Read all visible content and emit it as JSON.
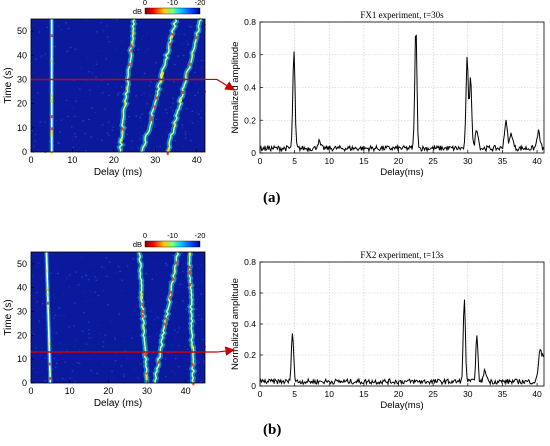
{
  "colors": {
    "line": "#000000",
    "arrow": "#cc0000",
    "heatmap_low": "#0b1a9c",
    "heatmap_high": "#ff0000"
  },
  "panels": [
    {
      "id": "a",
      "caption": "(a)",
      "colorbar": {
        "unit": "dB",
        "ticks": [
          "0",
          "-10",
          "-20"
        ]
      },
      "arrow_time_label": "t=30s"
    },
    {
      "id": "b",
      "caption": "(b)",
      "colorbar": {
        "unit": "dB",
        "ticks": [
          "0",
          "-10",
          "-20"
        ]
      },
      "arrow_time_label": "t=13s"
    }
  ],
  "chart_data": [
    {
      "type": "heatmap",
      "title": "",
      "xlabel": "Delay (ms)",
      "ylabel": "Time (s)",
      "xlim": [
        0,
        42
      ],
      "ylim": [
        0,
        55
      ],
      "xticks": [
        0,
        10,
        20,
        30,
        40
      ],
      "yticks": [
        0,
        10,
        20,
        30,
        40,
        50
      ],
      "colorbar_range_db": [
        0,
        -20
      ],
      "marker_time_s": 30,
      "tracks": [
        {
          "delay_ms_at_t0": 5,
          "delay_ms_at_t55": 5
        },
        {
          "delay_ms_at_t0": 21.5,
          "delay_ms_at_t55": 25
        },
        {
          "delay_ms_at_t0": 27,
          "delay_ms_at_t55": 35
        },
        {
          "delay_ms_at_t0": 33,
          "delay_ms_at_t55": 41
        }
      ]
    },
    {
      "type": "line",
      "title": "FX1 experiment,   t=30s",
      "xlabel": "Delay(ms)",
      "ylabel": "Normalized amplitude",
      "xlim": [
        0,
        41
      ],
      "ylim": [
        0,
        0.8
      ],
      "xticks": [
        0,
        5,
        10,
        15,
        20,
        25,
        30,
        35,
        40
      ],
      "yticks": [
        0,
        0.2,
        0.4,
        0.6,
        0.8
      ],
      "grid": true,
      "noise_floor": 0.03,
      "peaks": [
        {
          "x": 4.9,
          "y": 0.62
        },
        {
          "x": 8.5,
          "y": 0.07
        },
        {
          "x": 22.5,
          "y": 0.76
        },
        {
          "x": 29.9,
          "y": 0.58
        },
        {
          "x": 30.4,
          "y": 0.48
        },
        {
          "x": 31.3,
          "y": 0.15
        },
        {
          "x": 35.5,
          "y": 0.19
        },
        {
          "x": 36.3,
          "y": 0.12
        },
        {
          "x": 40.2,
          "y": 0.13
        }
      ]
    },
    {
      "type": "heatmap",
      "title": "",
      "xlabel": "Delay (ms)",
      "ylabel": "Time (s)",
      "xlim": [
        0,
        45
      ],
      "ylim": [
        0,
        55
      ],
      "xticks": [
        0,
        10,
        20,
        30,
        40
      ],
      "yticks": [
        0,
        10,
        20,
        30,
        40,
        50
      ],
      "colorbar_range_db": [
        0,
        -20
      ],
      "marker_time_s": 13,
      "tracks": [
        {
          "delay_ms_at_t0": 5,
          "delay_ms_at_t55": 4
        },
        {
          "delay_ms_at_t0": 30,
          "delay_ms_at_t55": 28
        },
        {
          "delay_ms_at_t0": 32,
          "delay_ms_at_t55": 38
        },
        {
          "delay_ms_at_t0": 42,
          "delay_ms_at_t55": 41
        }
      ]
    },
    {
      "type": "line",
      "title": "FX2 experiment,   t=13s",
      "xlabel": "Delay(ms)",
      "ylabel": "Normalized amplitude",
      "xlim": [
        0,
        41
      ],
      "ylim": [
        0,
        0.8
      ],
      "xticks": [
        0,
        5,
        10,
        15,
        20,
        25,
        30,
        35,
        40
      ],
      "yticks": [
        0,
        0.2,
        0.4,
        0.6,
        0.8
      ],
      "grid": true,
      "noise_floor": 0.03,
      "peaks": [
        {
          "x": 4.7,
          "y": 0.36
        },
        {
          "x": 29.5,
          "y": 0.55
        },
        {
          "x": 31.3,
          "y": 0.32
        },
        {
          "x": 32.5,
          "y": 0.1
        },
        {
          "x": 40.4,
          "y": 0.23
        },
        {
          "x": 40.9,
          "y": 0.18
        }
      ]
    }
  ]
}
